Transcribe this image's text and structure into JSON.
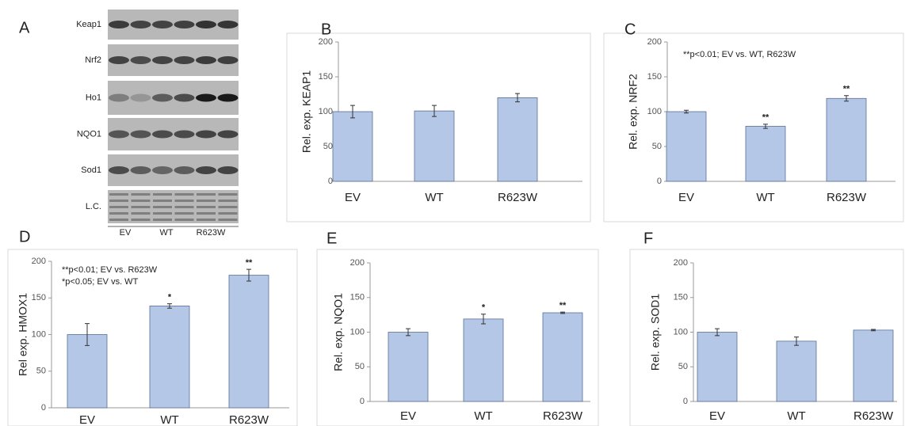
{
  "blot": {
    "letter": "A",
    "rows": [
      "Keap1",
      "Nrf2",
      "Ho1",
      "NQO1",
      "Sod1",
      "L.C."
    ],
    "lanes": [
      "EV",
      "WT",
      "R623W"
    ]
  },
  "chart_data": [
    {
      "type": "bar",
      "panel": "B",
      "y_label": "Rel. exp. KEAP1",
      "categories": [
        "EV",
        "WT",
        "R623W"
      ],
      "series": [
        {
          "color": "#b4c7e7",
          "values": [
            100,
            101,
            120
          ],
          "errors": [
            9,
            8,
            6
          ],
          "significance": [
            null,
            null,
            null
          ]
        }
      ],
      "annotations": [],
      "ylim": [
        0,
        200
      ],
      "yticks": [
        0,
        50,
        100,
        150,
        200
      ]
    },
    {
      "type": "bar",
      "panel": "C",
      "y_label": "Rel. exp. NRF2",
      "categories": [
        "EV",
        "WT",
        "R623W"
      ],
      "series": [
        {
          "color": "#b4c7e7",
          "values": [
            100,
            79,
            119
          ],
          "errors": [
            2,
            3,
            4
          ],
          "significance": [
            null,
            "**",
            "**"
          ]
        }
      ],
      "annotations": [
        "**p<0.01; EV vs. WT, R623W"
      ],
      "ylim": [
        0,
        200
      ],
      "yticks": [
        0,
        50,
        100,
        150,
        200
      ]
    },
    {
      "type": "bar",
      "panel": "D",
      "y_label": "Rel exp. HMOX1",
      "categories": [
        "EV",
        "WT",
        "R623W"
      ],
      "series": [
        {
          "color": "#b4c7e7",
          "values": [
            100,
            139,
            181
          ],
          "errors": [
            15,
            3,
            8
          ],
          "significance": [
            null,
            "*",
            "**"
          ]
        }
      ],
      "annotations": [
        "**p<0.01; EV vs. R623W",
        "*p<0.05; EV vs. WT"
      ],
      "ylim": [
        0,
        200
      ],
      "yticks": [
        0,
        50,
        100,
        150,
        200
      ]
    },
    {
      "type": "bar",
      "panel": "E",
      "y_label": "Rel. exp. NQO1",
      "categories": [
        "EV",
        "WT",
        "R623W"
      ],
      "series": [
        {
          "color": "#b4c7e7",
          "values": [
            100,
            119,
            128
          ],
          "errors": [
            5,
            7,
            1
          ],
          "significance": [
            null,
            "*",
            "**"
          ]
        }
      ],
      "annotations": [],
      "ylim": [
        0,
        200
      ],
      "yticks": [
        0,
        50,
        100,
        150,
        200
      ]
    },
    {
      "type": "bar",
      "panel": "F",
      "y_label": "Rel. exp. SOD1",
      "categories": [
        "EV",
        "WT",
        "R623W"
      ],
      "series": [
        {
          "color": "#b4c7e7",
          "values": [
            100,
            87,
            103
          ],
          "errors": [
            5,
            6,
            1
          ],
          "significance": [
            null,
            null,
            null
          ]
        }
      ],
      "annotations": [],
      "ylim": [
        0,
        200
      ],
      "yticks": [
        0,
        50,
        100,
        150,
        200
      ]
    }
  ]
}
